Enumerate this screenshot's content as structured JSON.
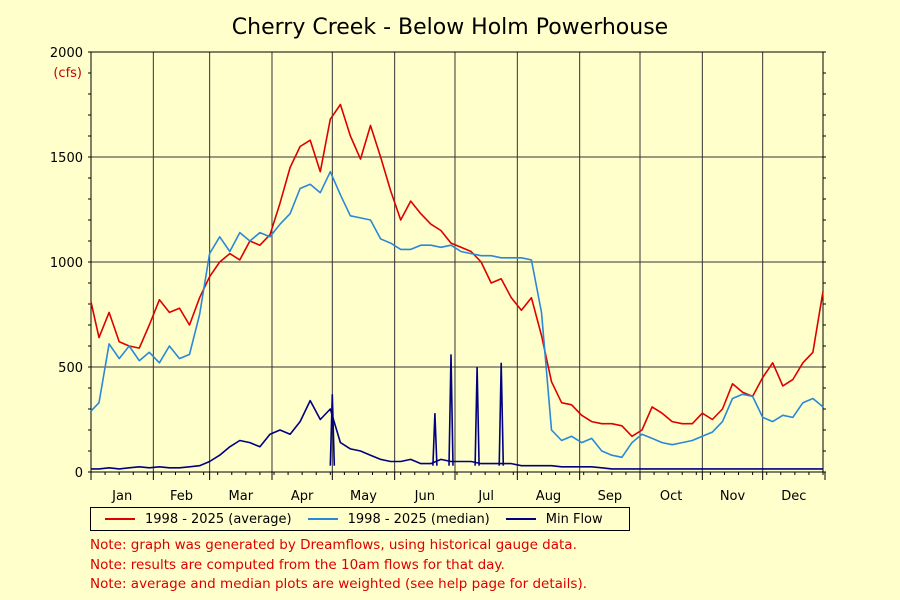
{
  "chart_data": {
    "type": "line",
    "title": "Cherry Creek - Below Holm Powerhouse",
    "ylabel": "(cfs)",
    "xlabel": "",
    "ylim": [
      0,
      2000
    ],
    "yticks": [
      0,
      500,
      1000,
      1500,
      2000
    ],
    "grid": true,
    "x_tick_labels": [
      "Jan",
      "Feb",
      "Mar",
      "Apr",
      "May",
      "Jun",
      "Jul",
      "Aug",
      "Sep",
      "Oct",
      "Nov",
      "Dec"
    ],
    "x_unit": "day of year",
    "x": [
      1,
      5,
      10,
      15,
      20,
      25,
      30,
      35,
      40,
      45,
      50,
      55,
      60,
      65,
      70,
      75,
      80,
      85,
      90,
      95,
      100,
      105,
      110,
      115,
      120,
      125,
      130,
      135,
      140,
      145,
      150,
      155,
      160,
      165,
      170,
      175,
      180,
      185,
      190,
      195,
      200,
      205,
      210,
      215,
      220,
      225,
      230,
      235,
      240,
      245,
      250,
      255,
      260,
      265,
      270,
      275,
      280,
      285,
      290,
      295,
      300,
      305,
      310,
      315,
      320,
      325,
      330,
      335,
      340,
      345,
      350,
      355,
      360,
      365
    ],
    "series": [
      {
        "name": "1998 - 2025 (average)",
        "color": "#dd0000",
        "values": [
          810,
          640,
          760,
          620,
          600,
          590,
          700,
          820,
          760,
          780,
          700,
          830,
          930,
          1000,
          1040,
          1010,
          1100,
          1080,
          1130,
          1280,
          1450,
          1550,
          1580,
          1430,
          1680,
          1750,
          1600,
          1490,
          1650,
          1500,
          1340,
          1200,
          1290,
          1230,
          1180,
          1150,
          1090,
          1070,
          1050,
          1000,
          900,
          920,
          830,
          770,
          830,
          650,
          430,
          330,
          320,
          270,
          240,
          230,
          230,
          220,
          170,
          200,
          310,
          280,
          240,
          230,
          230,
          280,
          250,
          300,
          420,
          380,
          360,
          450,
          520,
          410,
          440,
          520,
          570,
          860
        ]
      },
      {
        "name": "1998 - 2025 (median)",
        "color": "#2a88d8",
        "values": [
          290,
          330,
          610,
          540,
          600,
          530,
          570,
          520,
          600,
          540,
          560,
          750,
          1040,
          1120,
          1050,
          1140,
          1100,
          1140,
          1120,
          1180,
          1230,
          1350,
          1370,
          1330,
          1430,
          1320,
          1220,
          1210,
          1200,
          1110,
          1090,
          1060,
          1060,
          1080,
          1080,
          1070,
          1080,
          1050,
          1040,
          1030,
          1030,
          1020,
          1020,
          1020,
          1010,
          760,
          200,
          150,
          170,
          140,
          160,
          100,
          80,
          70,
          140,
          180,
          160,
          140,
          130,
          140,
          150,
          170,
          190,
          240,
          350,
          370,
          360,
          260,
          240,
          270,
          260,
          330,
          350,
          310
        ]
      },
      {
        "name": "Min Flow",
        "color": "#000080",
        "values": [
          15,
          15,
          20,
          15,
          20,
          25,
          20,
          25,
          20,
          20,
          25,
          30,
          50,
          80,
          120,
          150,
          140,
          120,
          180,
          200,
          180,
          240,
          340,
          250,
          300,
          140,
          110,
          100,
          80,
          60,
          50,
          50,
          60,
          40,
          40,
          60,
          50,
          50,
          50,
          40,
          40,
          40,
          40,
          30,
          30,
          30,
          30,
          25,
          25,
          25,
          25,
          20,
          15,
          15,
          15,
          15,
          15,
          15,
          15,
          15,
          15,
          15,
          15,
          15,
          15,
          15,
          15,
          15,
          15,
          15,
          15,
          15,
          15,
          15
        ]
      }
    ],
    "spikes": [
      {
        "name": "Min Flow",
        "x": 121,
        "y": 370
      },
      {
        "name": "Min Flow",
        "x": 180,
        "y": 560
      },
      {
        "name": "Min Flow",
        "x": 193,
        "y": 500
      },
      {
        "name": "Min Flow",
        "x": 205,
        "y": 520
      },
      {
        "name": "Min Flow",
        "x": 172,
        "y": 280
      }
    ]
  },
  "legend": [
    {
      "label": "1998 - 2025 (average)",
      "color": "#dd0000"
    },
    {
      "label": "1998 - 2025 (median)",
      "color": "#2a88d8"
    },
    {
      "label": "Min Flow",
      "color": "#000080"
    }
  ],
  "notes": [
    "Note: graph was generated by Dreamflows, using historical gauge data.",
    "Note: results are computed from the 10am flows for that day.",
    "Note: average and median plots are weighted (see help page for details)."
  ]
}
